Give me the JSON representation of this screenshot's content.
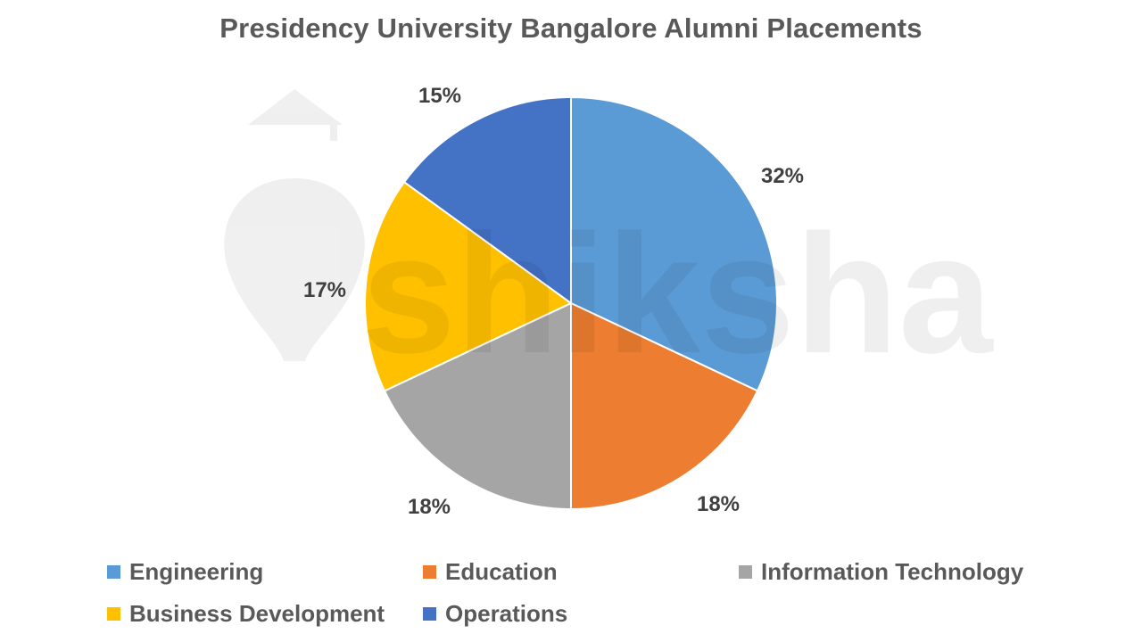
{
  "title": "Presidency University Bangalore Alumni Placements",
  "watermark": {
    "text": "shiksha"
  },
  "chart_data": {
    "type": "pie",
    "title": "Presidency University Bangalore Alumni Placements",
    "categories": [
      "Engineering",
      "Education",
      "Information Technology",
      "Business Development",
      "Operations"
    ],
    "values": [
      32,
      18,
      18,
      17,
      15
    ],
    "labels": [
      "32%",
      "18%",
      "18%",
      "17%",
      "15%"
    ],
    "colors": [
      "#5B9BD5",
      "#ED7D31",
      "#A5A5A5",
      "#FFC000",
      "#4472C4"
    ],
    "start_angle": "12 o'clock, clockwise",
    "legend_position": "bottom"
  },
  "legend": [
    {
      "label": "Engineering",
      "color": "#5B9BD5"
    },
    {
      "label": "Education",
      "color": "#ED7D31"
    },
    {
      "label": "Information Technology",
      "color": "#A5A5A5"
    },
    {
      "label": "Business Development",
      "color": "#FFC000"
    },
    {
      "label": "Operations",
      "color": "#4472C4"
    }
  ]
}
